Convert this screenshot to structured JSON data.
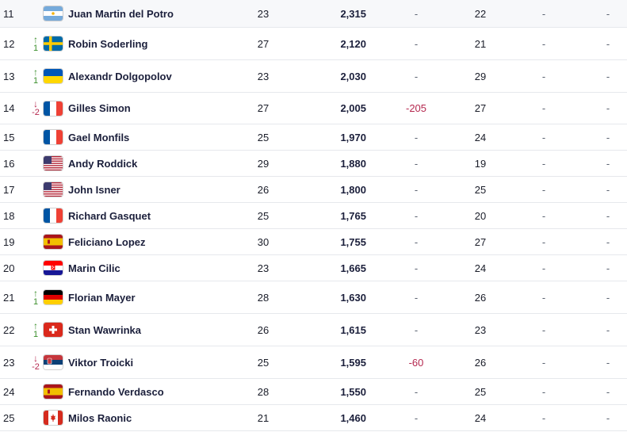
{
  "colors": {
    "up": "#3b8f2c",
    "down": "#b5284f",
    "divider": "#e6e8ec"
  },
  "rows": [
    {
      "rank": "11",
      "move_dir": "",
      "move_val": "",
      "flag": "argentina-flag-icon",
      "country": "ARG",
      "name": "Juan Martin del Potro",
      "age": "23",
      "points": "2,315",
      "pts_move": "-",
      "tourn": "22",
      "dropping": "-",
      "next": "-"
    },
    {
      "rank": "12",
      "move_dir": "up",
      "move_val": "1",
      "flag": "sweden-flag-icon",
      "country": "SWE",
      "name": "Robin Soderling",
      "age": "27",
      "points": "2,120",
      "pts_move": "-",
      "tourn": "21",
      "dropping": "-",
      "next": "-"
    },
    {
      "rank": "13",
      "move_dir": "up",
      "move_val": "1",
      "flag": "ukraine-flag-icon",
      "country": "UKR",
      "name": "Alexandr Dolgopolov",
      "age": "23",
      "points": "2,030",
      "pts_move": "-",
      "tourn": "29",
      "dropping": "-",
      "next": "-"
    },
    {
      "rank": "14",
      "move_dir": "down",
      "move_val": "-2",
      "flag": "france-flag-icon",
      "country": "FRA",
      "name": "Gilles Simon",
      "age": "27",
      "points": "2,005",
      "pts_move": "-205",
      "tourn": "27",
      "dropping": "-",
      "next": "-"
    },
    {
      "rank": "15",
      "move_dir": "",
      "move_val": "",
      "flag": "france-flag-icon",
      "country": "FRA",
      "name": "Gael Monfils",
      "age": "25",
      "points": "1,970",
      "pts_move": "-",
      "tourn": "24",
      "dropping": "-",
      "next": "-"
    },
    {
      "rank": "16",
      "move_dir": "",
      "move_val": "",
      "flag": "usa-flag-icon",
      "country": "USA",
      "name": "Andy Roddick",
      "age": "29",
      "points": "1,880",
      "pts_move": "-",
      "tourn": "19",
      "dropping": "-",
      "next": "-"
    },
    {
      "rank": "17",
      "move_dir": "",
      "move_val": "",
      "flag": "usa-flag-icon",
      "country": "USA",
      "name": "John Isner",
      "age": "26",
      "points": "1,800",
      "pts_move": "-",
      "tourn": "25",
      "dropping": "-",
      "next": "-"
    },
    {
      "rank": "18",
      "move_dir": "",
      "move_val": "",
      "flag": "france-flag-icon",
      "country": "FRA",
      "name": "Richard Gasquet",
      "age": "25",
      "points": "1,765",
      "pts_move": "-",
      "tourn": "20",
      "dropping": "-",
      "next": "-"
    },
    {
      "rank": "19",
      "move_dir": "",
      "move_val": "",
      "flag": "spain-flag-icon",
      "country": "ESP",
      "name": "Feliciano Lopez",
      "age": "30",
      "points": "1,755",
      "pts_move": "-",
      "tourn": "27",
      "dropping": "-",
      "next": "-"
    },
    {
      "rank": "20",
      "move_dir": "",
      "move_val": "",
      "flag": "croatia-flag-icon",
      "country": "CRO",
      "name": "Marin Cilic",
      "age": "23",
      "points": "1,665",
      "pts_move": "-",
      "tourn": "24",
      "dropping": "-",
      "next": "-"
    },
    {
      "rank": "21",
      "move_dir": "up",
      "move_val": "1",
      "flag": "germany-flag-icon",
      "country": "GER",
      "name": "Florian Mayer",
      "age": "28",
      "points": "1,630",
      "pts_move": "-",
      "tourn": "26",
      "dropping": "-",
      "next": "-"
    },
    {
      "rank": "22",
      "move_dir": "up",
      "move_val": "1",
      "flag": "switzerland-flag-icon",
      "country": "SUI",
      "name": "Stan Wawrinka",
      "age": "26",
      "points": "1,615",
      "pts_move": "-",
      "tourn": "23",
      "dropping": "-",
      "next": "-"
    },
    {
      "rank": "23",
      "move_dir": "down",
      "move_val": "-2",
      "flag": "serbia-flag-icon",
      "country": "SRB",
      "name": "Viktor Troicki",
      "age": "25",
      "points": "1,595",
      "pts_move": "-60",
      "tourn": "26",
      "dropping": "-",
      "next": "-"
    },
    {
      "rank": "24",
      "move_dir": "",
      "move_val": "",
      "flag": "spain-flag-icon",
      "country": "ESP",
      "name": "Fernando Verdasco",
      "age": "28",
      "points": "1,550",
      "pts_move": "-",
      "tourn": "25",
      "dropping": "-",
      "next": "-"
    },
    {
      "rank": "25",
      "move_dir": "",
      "move_val": "",
      "flag": "canada-flag-icon",
      "country": "CAN",
      "name": "Milos Raonic",
      "age": "21",
      "points": "1,460",
      "pts_move": "-",
      "tourn": "24",
      "dropping": "-",
      "next": "-"
    }
  ]
}
